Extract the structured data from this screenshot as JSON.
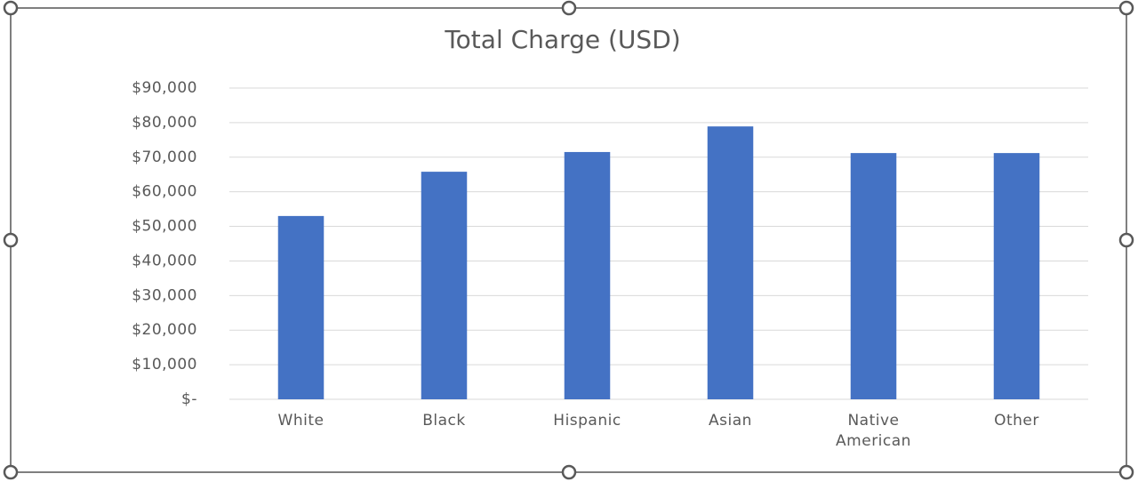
{
  "chart_data": {
    "type": "bar",
    "title": "Total Charge (USD)",
    "categories": [
      "White",
      "Black",
      "Hispanic",
      "Asian",
      "Native American",
      "Other"
    ],
    "values": [
      53000,
      65800,
      71500,
      78900,
      71200,
      71200
    ],
    "color": "#4472c4",
    "ylim": [
      0,
      90000
    ],
    "yticks": [
      {
        "value": 0,
        "label": "$-"
      },
      {
        "value": 10000,
        "label": "$10,000"
      },
      {
        "value": 20000,
        "label": "$20,000"
      },
      {
        "value": 30000,
        "label": "$30,000"
      },
      {
        "value": 40000,
        "label": "$40,000"
      },
      {
        "value": 50000,
        "label": "$50,000"
      },
      {
        "value": 60000,
        "label": "$60,000"
      },
      {
        "value": 70000,
        "label": "$70,000"
      },
      {
        "value": 80000,
        "label": "$80,000"
      },
      {
        "value": 90000,
        "label": "$90,000"
      }
    ],
    "grid": true
  }
}
